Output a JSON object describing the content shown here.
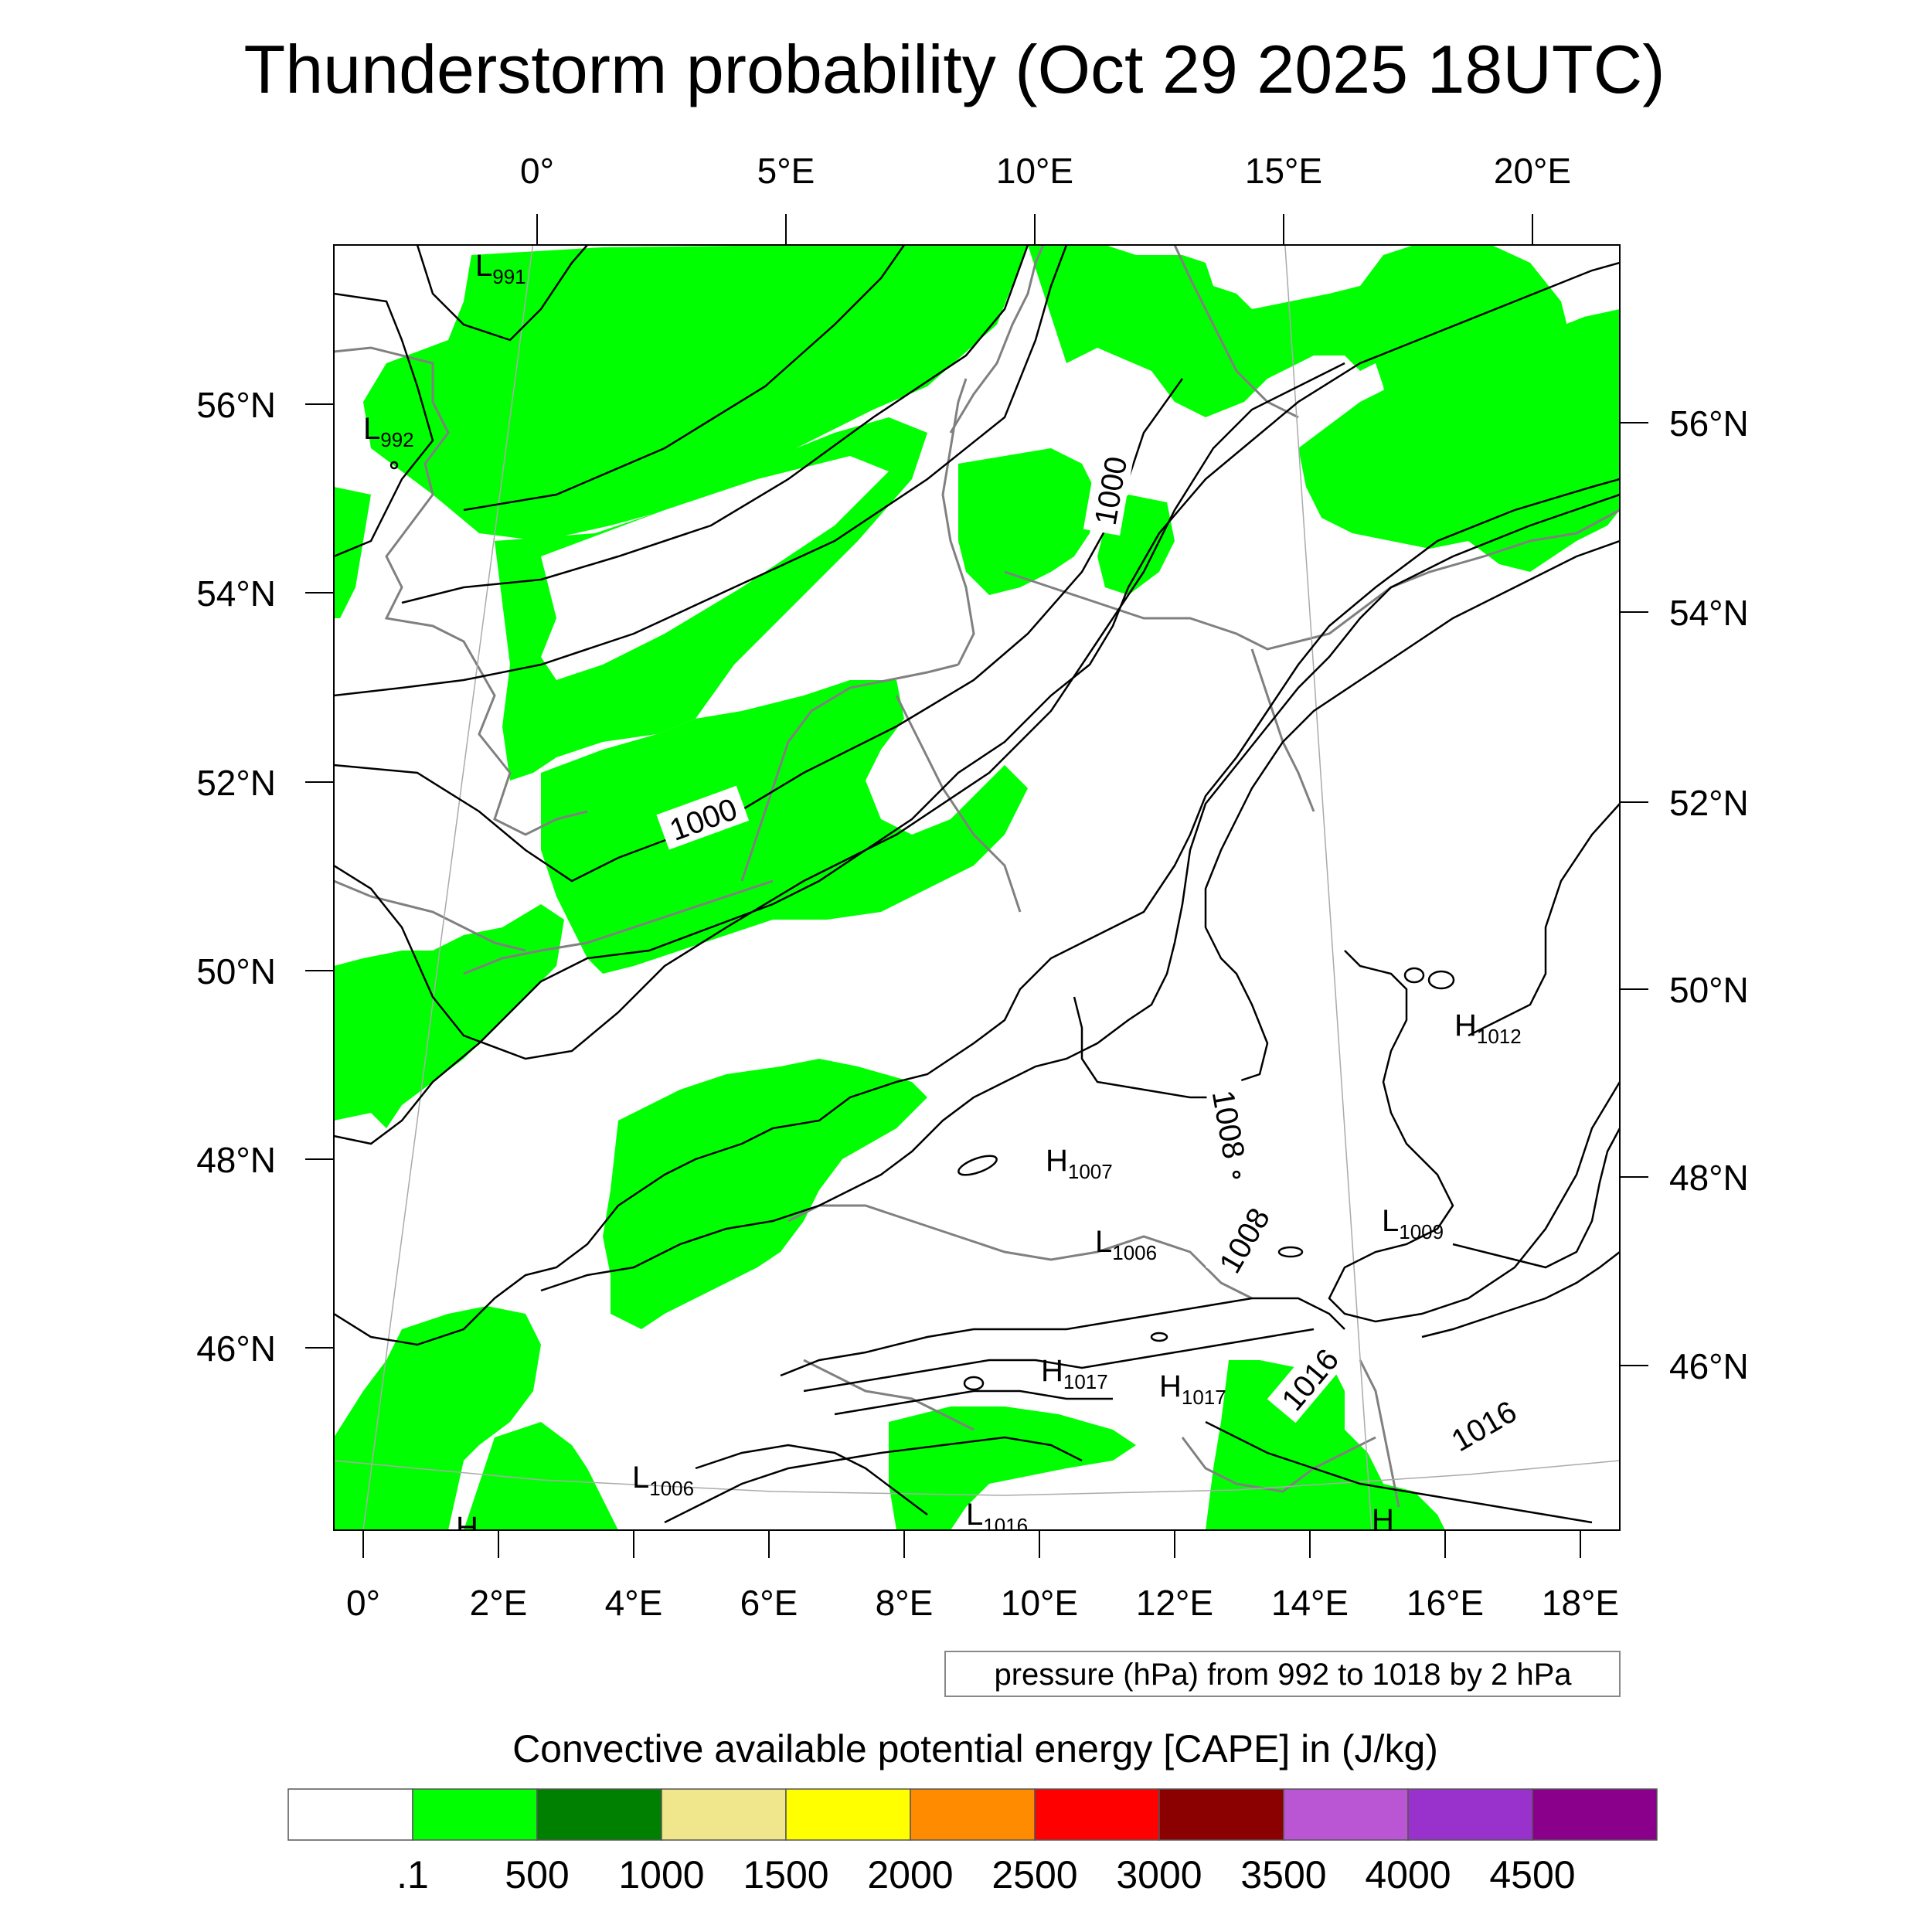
{
  "title": "Thunderstorm probability (Oct 29 2025 18UTC)",
  "top_lon_labels": [
    "0°",
    "5°E",
    "10°E",
    "15°E",
    "20°E"
  ],
  "bottom_lon_labels": [
    "0°",
    "2°E",
    "4°E",
    "6°E",
    "8°E",
    "10°E",
    "12°E",
    "14°E",
    "16°E",
    "18°E"
  ],
  "left_lat_labels": [
    "56°N",
    "54°N",
    "52°N",
    "50°N",
    "48°N",
    "46°N"
  ],
  "right_lat_labels": [
    "56°N",
    "54°N",
    "52°N",
    "50°N",
    "48°N",
    "46°N"
  ],
  "pressure_centers": [
    {
      "letter": "L",
      "value": "991"
    },
    {
      "letter": "L",
      "value": "992"
    },
    {
      "letter": "H",
      "value": "1012"
    },
    {
      "letter": "H",
      "value": "1007"
    },
    {
      "letter": "L",
      "value": "1006"
    },
    {
      "letter": "L",
      "value": "1009"
    },
    {
      "letter": "H",
      "value": "1017"
    },
    {
      "letter": "H",
      "value": "1017"
    },
    {
      "letter": "L",
      "value": "1006"
    },
    {
      "letter": "L",
      "value": "1016"
    },
    {
      "letter": "H",
      "value": ""
    },
    {
      "letter": "H",
      "value": ""
    }
  ],
  "contour_labels": [
    "1000",
    "1000",
    "1008",
    "1008",
    "1016",
    "1016"
  ],
  "contour_info": "pressure (hPa) from 992 to 1018 by 2 hPa",
  "colorbar": {
    "title": "Convective available potential energy [CAPE] in (J/kg)",
    "colors": [
      "#ffffff",
      "#00ff00",
      "#008000",
      "#f0e68c",
      "#ffff00",
      "#ff8c00",
      "#ff0000",
      "#8b0000",
      "#ba55d3",
      "#9932cc",
      "#8b008b"
    ],
    "labels": [
      ".1",
      "500",
      "1000",
      "1500",
      "2000",
      "2500",
      "3000",
      "3500",
      "4000",
      "4500"
    ]
  },
  "cape_fill_color": "#00ff00",
  "coastline_color": "#808080"
}
